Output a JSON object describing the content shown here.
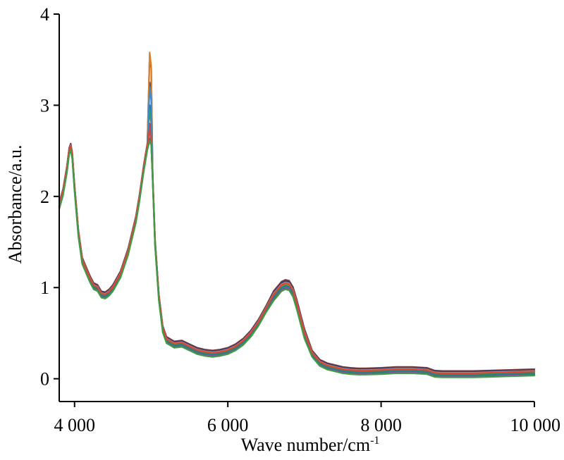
{
  "chart_data": {
    "type": "line",
    "title": "",
    "xlabel": "Wave number/cm",
    "xlabel_superscript": "-1",
    "ylabel": "Absorbance/a.u.",
    "xlim": [
      3800,
      10000
    ],
    "ylim": [
      -0.25,
      4
    ],
    "xticks": [
      4000,
      6000,
      8000,
      10000
    ],
    "xtick_labels": [
      "4 000",
      "6 000",
      "8 000",
      "10 000"
    ],
    "yticks": [
      0,
      1,
      2,
      3,
      4
    ],
    "ytick_labels": [
      "0",
      "1",
      "2",
      "3",
      "4"
    ],
    "grid": false,
    "legend": "none",
    "representative_spectrum": {
      "x": [
        3800,
        3850,
        3900,
        3930,
        3950,
        3970,
        4000,
        4050,
        4100,
        4150,
        4200,
        4250,
        4300,
        4350,
        4400,
        4450,
        4500,
        4600,
        4700,
        4800,
        4850,
        4900,
        4950,
        4980,
        5000,
        5020,
        5050,
        5100,
        5150,
        5200,
        5300,
        5400,
        5500,
        5600,
        5700,
        5800,
        5900,
        6000,
        6100,
        6200,
        6300,
        6400,
        6500,
        6600,
        6700,
        6750,
        6800,
        6850,
        6900,
        7000,
        7100,
        7200,
        7300,
        7400,
        7500,
        7600,
        7700,
        7800,
        8000,
        8200,
        8400,
        8600,
        8700,
        8800,
        9000,
        9200,
        9400,
        9600,
        9800,
        10000
      ],
      "y": [
        1.9,
        2.05,
        2.3,
        2.5,
        2.55,
        2.45,
        2.1,
        1.6,
        1.3,
        1.2,
        1.1,
        1.02,
        1.0,
        0.93,
        0.92,
        0.95,
        1.0,
        1.15,
        1.4,
        1.75,
        2.0,
        2.3,
        2.55,
        2.65,
        2.6,
        2.2,
        1.5,
        0.9,
        0.55,
        0.43,
        0.38,
        0.39,
        0.35,
        0.31,
        0.29,
        0.28,
        0.29,
        0.31,
        0.35,
        0.41,
        0.5,
        0.62,
        0.77,
        0.92,
        1.02,
        1.04,
        1.03,
        0.96,
        0.82,
        0.5,
        0.28,
        0.18,
        0.14,
        0.12,
        0.1,
        0.09,
        0.085,
        0.085,
        0.09,
        0.1,
        0.1,
        0.09,
        0.06,
        0.055,
        0.055,
        0.055,
        0.06,
        0.065,
        0.07,
        0.075
      ]
    },
    "series_count": 12,
    "series_colors": [
      "#7a3b3b",
      "#3a3a6e",
      "#2f5f9f",
      "#c33b2f",
      "#d9822b",
      "#2e9e5a",
      "#3b8bd1",
      "#8b4aa0",
      "#a3a3a3",
      "#2a7f7f",
      "#e0452f",
      "#3d9d47"
    ],
    "series_offsets": [
      0.03,
      0.02,
      0.01,
      0.0,
      0.0,
      -0.01,
      -0.02,
      -0.03,
      0.01,
      -0.015,
      0.005,
      -0.04
    ],
    "peak_spread_max": [
      3.55,
      3.25,
      3.0,
      2.8,
      3.58,
      2.95,
      3.2,
      2.7,
      2.6,
      2.5,
      2.75,
      2.35
    ]
  }
}
